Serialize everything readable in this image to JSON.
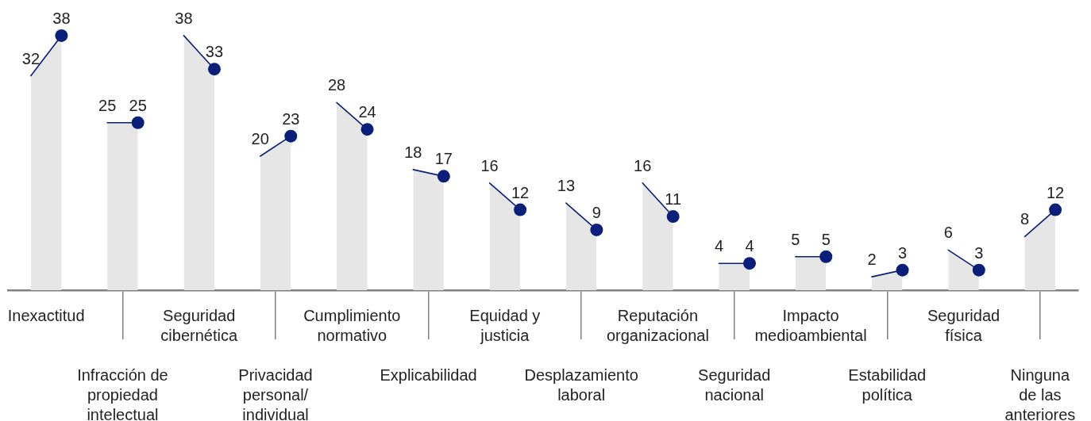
{
  "chart_data": {
    "type": "area",
    "categories": [
      null,
      null,
      "Inexactitud",
      null,
      null,
      null,
      null,
      "Infracción de\npropiedad\nintelectual",
      null,
      null,
      null,
      null,
      "Seguridad\ncibernética",
      null,
      null,
      null,
      null,
      "Privacidad\npersonal/\nindividual",
      null,
      null,
      null,
      null,
      "Cumplimiento\nnormativo",
      null,
      null,
      null,
      null,
      "Explicabilidad",
      null,
      null,
      null,
      null,
      "Equidad y\njusticia",
      null,
      null,
      null,
      null,
      "Desplazamiento\nlaboral",
      null,
      null,
      null,
      null,
      "Reputación\norganizacional",
      null,
      null,
      null,
      null,
      "Seguridad\nnacional",
      null,
      null,
      null,
      null,
      "Impacto\nmedioambiental",
      null,
      null,
      null,
      null,
      "Estabilidad\npolítica",
      null,
      null,
      null,
      null,
      "Seguridad\nfísica",
      null,
      null,
      null,
      null,
      "Ninguna\nde las\nanteriores",
      null,
      null
    ],
    "series": [
      {
        "color": "#e6e6e6",
        "values": [
          null,
          32,
          null,
          38,
          null,
          null,
          25,
          null,
          25,
          null,
          null,
          38,
          null,
          33,
          null,
          null,
          20,
          null,
          23,
          null,
          null,
          28,
          null,
          24,
          null,
          null,
          18,
          null,
          17,
          null,
          null,
          16,
          null,
          12,
          null,
          null,
          13,
          null,
          9,
          null,
          null,
          16,
          null,
          11,
          null,
          null,
          4,
          null,
          4,
          null,
          null,
          5,
          null,
          5,
          null,
          null,
          2,
          null,
          3,
          null,
          null,
          6,
          null,
          3,
          null,
          null,
          8,
          null,
          12,
          null
        ],
        "value_labels": [
          null,
          "32",
          null,
          null,
          null,
          null,
          "25",
          null,
          null,
          null,
          null,
          "38",
          null,
          null,
          null,
          null,
          "20",
          null,
          null,
          null,
          null,
          "28",
          null,
          null,
          null,
          null,
          "18",
          null,
          null,
          null,
          null,
          "16",
          null,
          null,
          null,
          null,
          "13",
          null,
          null,
          null,
          null,
          "16",
          null,
          null,
          null,
          null,
          "4",
          null,
          null,
          null,
          null,
          "5",
          null,
          null,
          null,
          null,
          "2",
          null,
          null,
          null,
          null,
          "6",
          null,
          null,
          null,
          null,
          "8",
          null,
          null,
          null
        ]
      },
      {
        "type": "scatter",
        "color": "#0a1f7a",
        "marker": "circle",
        "values": [
          null,
          null,
          null,
          38,
          null,
          null,
          null,
          null,
          25,
          null,
          null,
          null,
          null,
          33,
          null,
          null,
          null,
          null,
          23,
          null,
          null,
          null,
          null,
          24,
          null,
          null,
          null,
          null,
          17,
          null,
          null,
          null,
          null,
          12,
          null,
          null,
          null,
          null,
          9,
          null,
          null,
          null,
          null,
          11,
          null,
          null,
          null,
          null,
          4,
          null,
          null,
          null,
          null,
          5,
          null,
          null,
          null,
          null,
          3,
          null,
          null,
          null,
          null,
          3,
          null,
          null,
          null,
          null,
          12,
          null
        ],
        "value_labels": [
          null,
          null,
          null,
          "38",
          null,
          null,
          null,
          null,
          "25",
          null,
          null,
          null,
          null,
          "33",
          null,
          null,
          null,
          null,
          "23",
          null,
          null,
          null,
          null,
          "24",
          null,
          null,
          null,
          null,
          "17",
          null,
          null,
          null,
          null,
          "12",
          null,
          null,
          null,
          null,
          "9",
          null,
          null,
          null,
          null,
          "11",
          null,
          null,
          null,
          null,
          "4",
          null,
          null,
          null,
          null,
          "5",
          null,
          null,
          null,
          null,
          "3",
          null,
          null,
          null,
          null,
          "3",
          null,
          null,
          null,
          null,
          "12",
          null
        ]
      }
    ],
    "tick_labels": "x"
  }
}
